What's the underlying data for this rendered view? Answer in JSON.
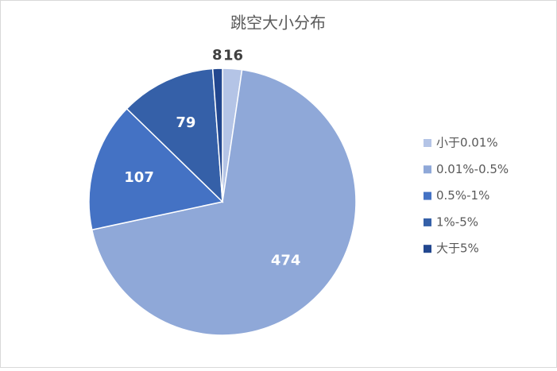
{
  "chart_data": {
    "type": "pie",
    "title": "跳空大小分布",
    "categories": [
      "小于0.01%",
      "0.01%-0.5%",
      "0.5%-1%",
      "1%-5%",
      "大于5%"
    ],
    "values": [
      16,
      474,
      107,
      79,
      8
    ],
    "colors": [
      "#b4c4e6",
      "#8fa8d8",
      "#4472c4",
      "#3560a8",
      "#22478f"
    ],
    "legend": "right"
  }
}
